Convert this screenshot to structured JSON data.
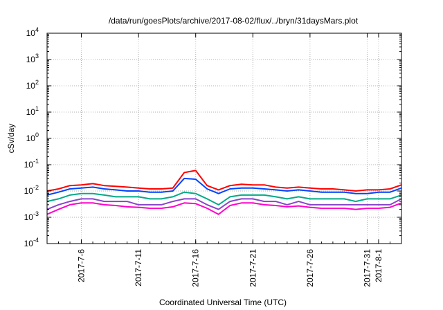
{
  "chart_data": {
    "type": "line",
    "title": "/data/run/goesPlots/archive/2017-08-02/flux/../bryn/31daysMars.plot",
    "xlabel": "Coordinated Universal Time (UTC)",
    "ylabel": "cSv/day",
    "y_scale": "log",
    "ylim": [
      0.0001,
      10000
    ],
    "xlim": [
      "2017-07-03T00:00",
      "2017-08-03T00:00"
    ],
    "grid": true,
    "legend": "none",
    "y_ticks": [
      {
        "base": "10",
        "exp": "-4",
        "value": 0.0001
      },
      {
        "base": "10",
        "exp": "-3",
        "value": 0.001
      },
      {
        "base": "10",
        "exp": "-2",
        "value": 0.01
      },
      {
        "base": "10",
        "exp": "-1",
        "value": 0.1
      },
      {
        "base": "10",
        "exp": "0",
        "value": 1
      },
      {
        "base": "10",
        "exp": "1",
        "value": 10
      },
      {
        "base": "10",
        "exp": "2",
        "value": 100
      },
      {
        "base": "10",
        "exp": "3",
        "value": 1000
      },
      {
        "base": "10",
        "exp": "4",
        "value": 10000
      }
    ],
    "x_ticks": [
      "2017-7-6",
      "2017-7-11",
      "2017-7-16",
      "2017-7-21",
      "2017-7-26",
      "2017-7-31",
      "2017-8-1"
    ],
    "x_tick_dates": [
      "2017-07-06",
      "2017-07-11",
      "2017-07-16",
      "2017-07-21",
      "2017-07-26",
      "2017-07-31",
      "2017-08-01"
    ],
    "x": [
      "2017-07-03",
      "2017-07-04",
      "2017-07-05",
      "2017-07-06",
      "2017-07-07",
      "2017-07-08",
      "2017-07-09",
      "2017-07-10",
      "2017-07-11",
      "2017-07-12",
      "2017-07-13",
      "2017-07-14",
      "2017-07-15",
      "2017-07-16",
      "2017-07-17",
      "2017-07-18",
      "2017-07-19",
      "2017-07-20",
      "2017-07-21",
      "2017-07-22",
      "2017-07-23",
      "2017-07-24",
      "2017-07-25",
      "2017-07-26",
      "2017-07-27",
      "2017-07-28",
      "2017-07-29",
      "2017-07-30",
      "2017-07-31",
      "2017-08-01",
      "2017-08-02",
      "2017-08-03"
    ],
    "series": [
      {
        "color": "#ff0000",
        "values": [
          0.01,
          0.012,
          0.016,
          0.017,
          0.019,
          0.016,
          0.015,
          0.014,
          0.013,
          0.012,
          0.012,
          0.013,
          0.05,
          0.06,
          0.016,
          0.011,
          0.016,
          0.018,
          0.017,
          0.017,
          0.014,
          0.013,
          0.014,
          0.013,
          0.012,
          0.012,
          0.011,
          0.01,
          0.011,
          0.011,
          0.012,
          0.017
        ]
      },
      {
        "color": "#0044ff",
        "values": [
          0.007,
          0.009,
          0.012,
          0.013,
          0.014,
          0.012,
          0.011,
          0.01,
          0.01,
          0.009,
          0.009,
          0.01,
          0.03,
          0.028,
          0.012,
          0.008,
          0.012,
          0.013,
          0.013,
          0.012,
          0.011,
          0.01,
          0.011,
          0.01,
          0.009,
          0.009,
          0.009,
          0.008,
          0.008,
          0.009,
          0.009,
          0.013
        ]
      },
      {
        "color": "#00aa88",
        "values": [
          0.004,
          0.005,
          0.007,
          0.008,
          0.008,
          0.007,
          0.006,
          0.006,
          0.006,
          0.005,
          0.005,
          0.006,
          0.009,
          0.008,
          0.005,
          0.003,
          0.006,
          0.007,
          0.007,
          0.007,
          0.006,
          0.005,
          0.006,
          0.005,
          0.005,
          0.005,
          0.005,
          0.004,
          0.005,
          0.005,
          0.005,
          0.007
        ]
      },
      {
        "color": "#8844cc",
        "values": [
          0.002,
          0.003,
          0.004,
          0.005,
          0.005,
          0.004,
          0.004,
          0.004,
          0.003,
          0.003,
          0.003,
          0.004,
          0.005,
          0.005,
          0.003,
          0.002,
          0.004,
          0.005,
          0.005,
          0.004,
          0.004,
          0.003,
          0.004,
          0.003,
          0.003,
          0.003,
          0.003,
          0.003,
          0.003,
          0.003,
          0.003,
          0.005
        ]
      },
      {
        "color": "#ff00cc",
        "values": [
          0.0013,
          0.002,
          0.003,
          0.0035,
          0.0035,
          0.003,
          0.0028,
          0.0025,
          0.0024,
          0.0022,
          0.0022,
          0.0025,
          0.0035,
          0.0033,
          0.0022,
          0.0013,
          0.0028,
          0.0035,
          0.0035,
          0.003,
          0.0028,
          0.0025,
          0.0027,
          0.0024,
          0.0022,
          0.0022,
          0.0022,
          0.002,
          0.0022,
          0.0022,
          0.0024,
          0.0035
        ]
      }
    ]
  }
}
